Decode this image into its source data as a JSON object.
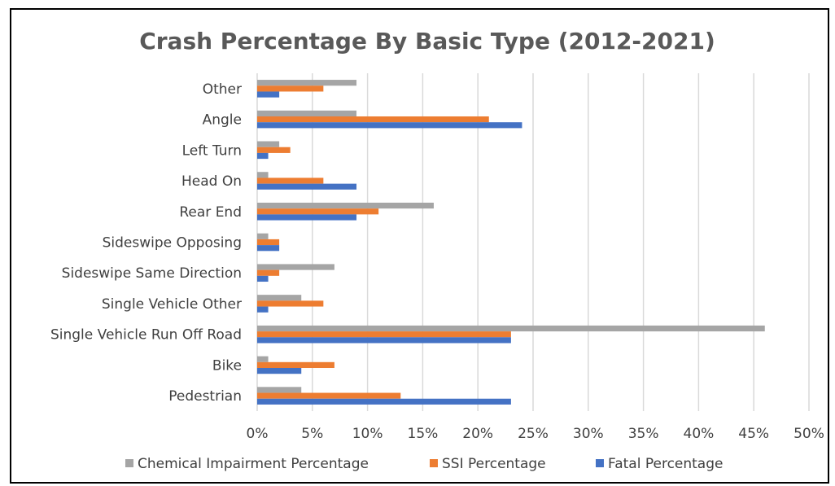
{
  "chart_data": {
    "type": "bar",
    "orientation": "horizontal",
    "title": "Crash Percentage By Basic Type (2012-2021)",
    "xlabel": "",
    "ylabel": "",
    "xlim": [
      0,
      50
    ],
    "x_ticks": [
      0,
      5,
      10,
      15,
      20,
      25,
      30,
      35,
      40,
      45,
      50
    ],
    "x_tick_labels": [
      "0%",
      "5%",
      "10%",
      "15%",
      "20%",
      "25%",
      "30%",
      "35%",
      "40%",
      "45%",
      "50%"
    ],
    "grid": "vertical",
    "legend_position": "bottom",
    "categories": [
      "Other",
      "Angle",
      "Left Turn",
      "Head On",
      "Rear End",
      "Sideswipe Opposing",
      "Sideswipe Same Direction",
      "Single Vehicle Other",
      "Single Vehicle Run Off Road",
      "Bike",
      "Pedestrian"
    ],
    "series": [
      {
        "name": "Chemical Impairment Percentage",
        "color": "#a5a5a5",
        "values": [
          9,
          9,
          2,
          1,
          16,
          1,
          7,
          4,
          46,
          1,
          4
        ]
      },
      {
        "name": "SSI Percentage",
        "color": "#ed7d31",
        "values": [
          6,
          21,
          3,
          6,
          11,
          2,
          2,
          6,
          23,
          7,
          13
        ]
      },
      {
        "name": "Fatal Percentage",
        "color": "#4472c4",
        "values": [
          2,
          24,
          1,
          9,
          9,
          2,
          1,
          1,
          23,
          4,
          23
        ]
      }
    ]
  },
  "colors": {
    "gridline": "#d9d9d9",
    "text": "#404040",
    "title": "#595959",
    "border": "#000000"
  }
}
